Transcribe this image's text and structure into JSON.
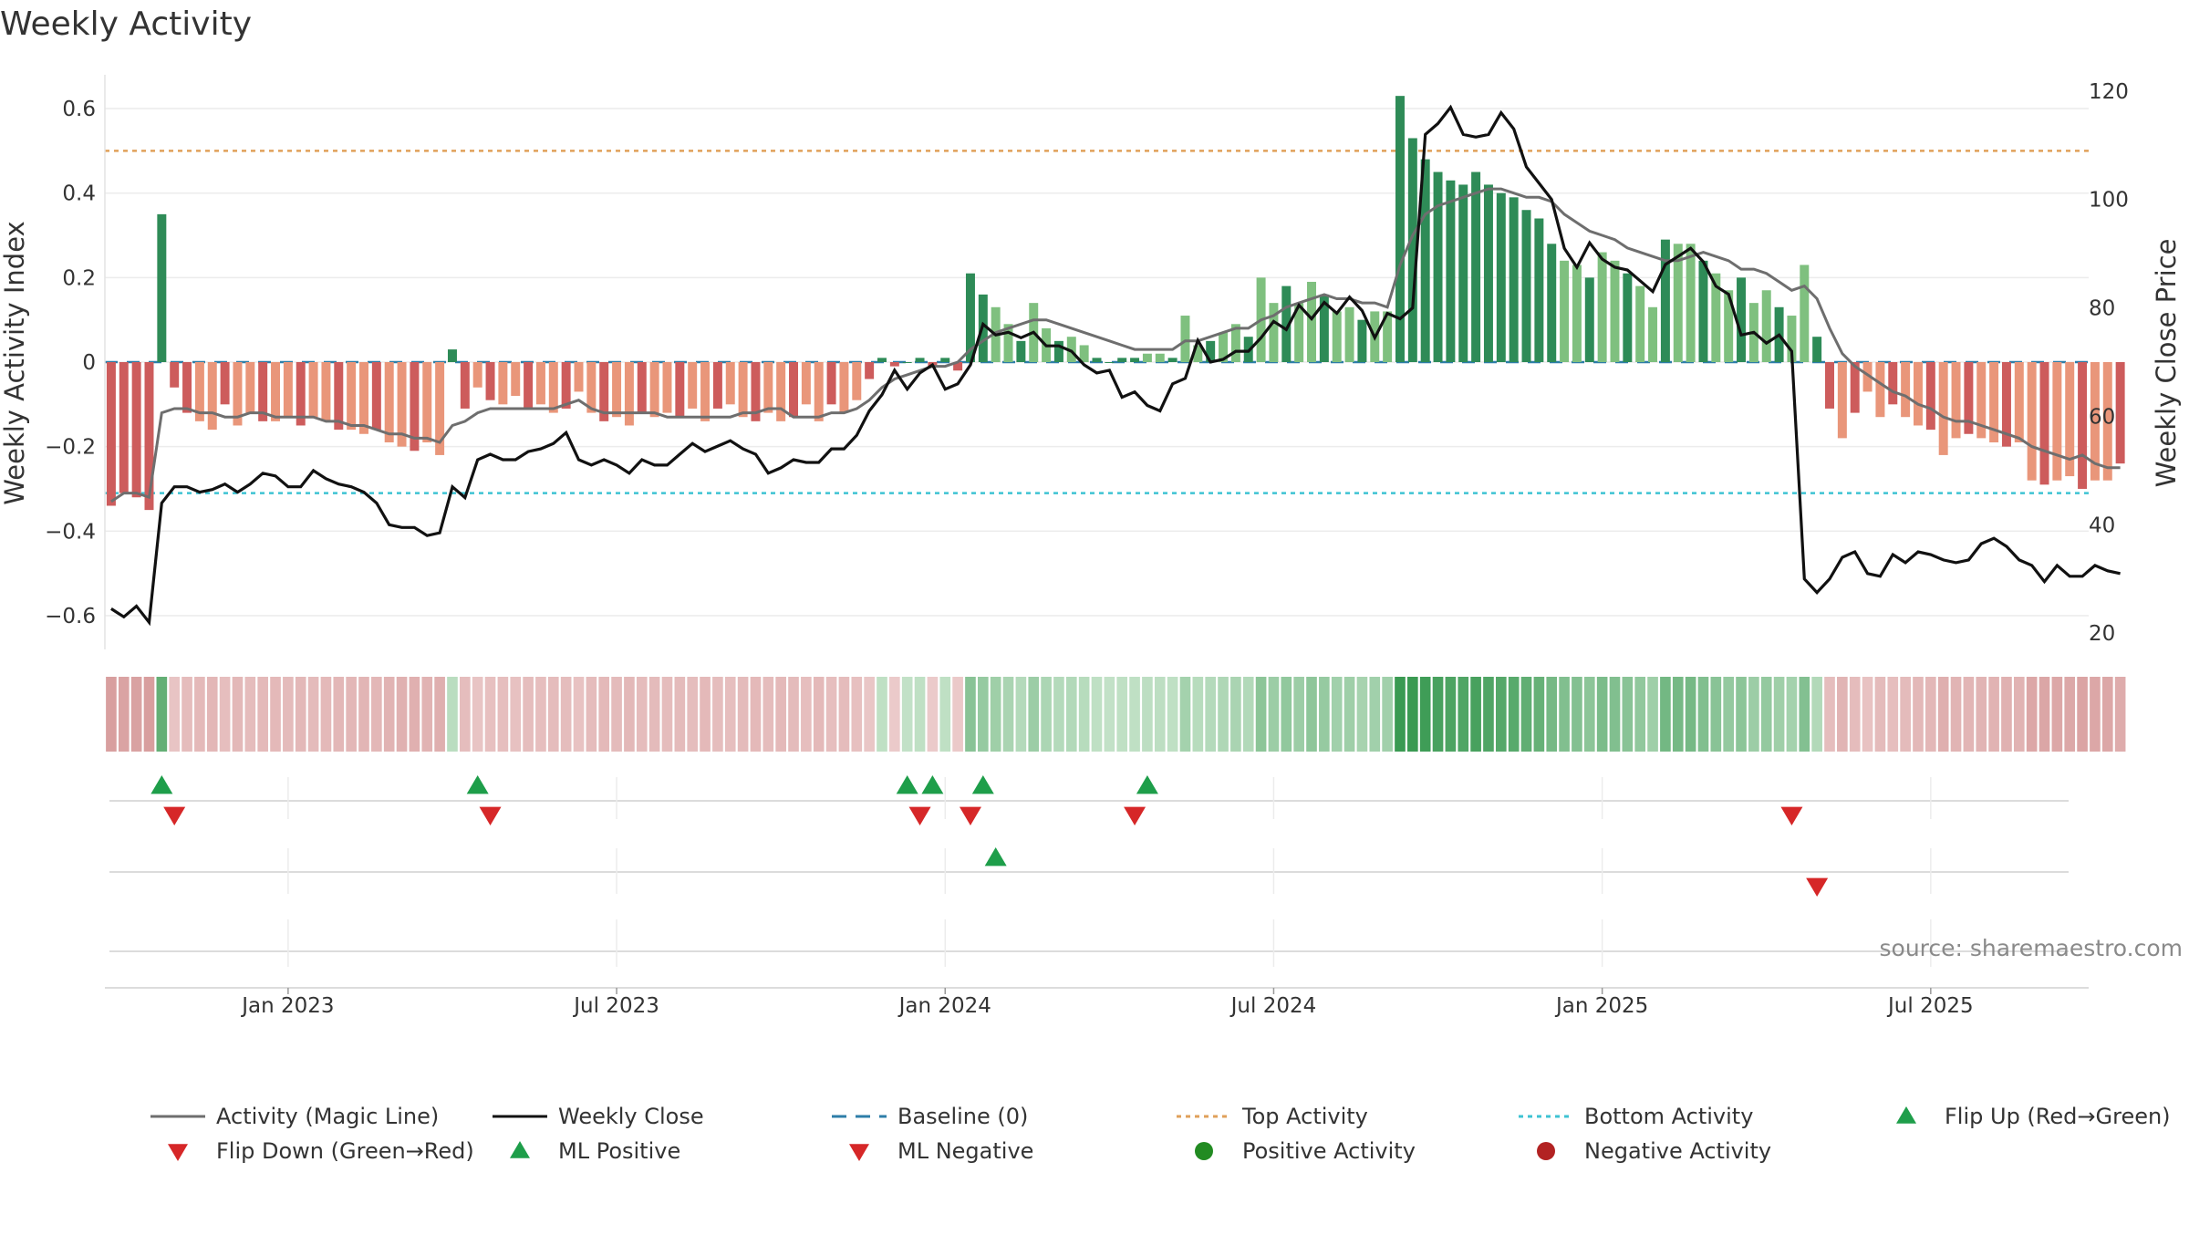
{
  "chart_data": {
    "type": "bar",
    "title": "Weekly Activity",
    "ylabel": "Weekly Activity Index",
    "ylabel_right": "Weekly Close Price",
    "ylim": [
      -0.68,
      0.68
    ],
    "ylim_right": [
      17,
      123
    ],
    "y_ticks": [
      {
        "value": 0.6,
        "label": "0.6"
      },
      {
        "value": 0.4,
        "label": "0.4"
      },
      {
        "value": 0.2,
        "label": "0.2"
      },
      {
        "value": 0,
        "label": "0"
      },
      {
        "value": -0.2,
        "label": "−0.2"
      },
      {
        "value": -0.4,
        "label": "−0.4"
      },
      {
        "value": -0.6,
        "label": "−0.6"
      }
    ],
    "y_right_ticks": [
      120,
      100,
      80,
      60,
      40,
      20
    ],
    "x_ticks": [
      {
        "week": 14,
        "label": "Jan 2023"
      },
      {
        "week": 40,
        "label": "Jul 2023"
      },
      {
        "week": 66,
        "label": "Jan 2024"
      },
      {
        "week": 92,
        "label": "Jul 2024"
      },
      {
        "week": 118,
        "label": "Jan 2025"
      },
      {
        "week": 144,
        "label": "Jul 2025"
      }
    ],
    "weeks": 157,
    "activity": [
      -0.34,
      -0.31,
      -0.32,
      -0.35,
      0.35,
      -0.06,
      -0.12,
      -0.14,
      -0.16,
      -0.1,
      -0.15,
      -0.12,
      -0.14,
      -0.14,
      -0.13,
      -0.15,
      -0.13,
      -0.14,
      -0.16,
      -0.16,
      -0.17,
      -0.16,
      -0.19,
      -0.2,
      -0.21,
      -0.19,
      -0.22,
      0.03,
      -0.11,
      -0.06,
      -0.09,
      -0.1,
      -0.08,
      -0.11,
      -0.1,
      -0.12,
      -0.11,
      -0.07,
      -0.12,
      -0.14,
      -0.13,
      -0.15,
      -0.12,
      -0.13,
      -0.12,
      -0.13,
      -0.11,
      -0.14,
      -0.11,
      -0.1,
      -0.13,
      -0.14,
      -0.12,
      -0.14,
      -0.13,
      -0.1,
      -0.14,
      -0.1,
      -0.12,
      -0.09,
      -0.04,
      0.01,
      -0.01,
      0.0,
      0.01,
      -0.01,
      0.01,
      -0.02,
      0.21,
      0.16,
      0.13,
      0.09,
      0.05,
      0.14,
      0.08,
      0.05,
      0.06,
      0.04,
      0.01,
      0.0,
      0.01,
      0.01,
      0.02,
      0.02,
      0.01,
      0.11,
      0.04,
      0.05,
      0.07,
      0.09,
      0.06,
      0.2,
      0.14,
      0.18,
      0.14,
      0.19,
      0.16,
      0.12,
      0.13,
      0.1,
      0.12,
      0.12,
      0.63,
      0.53,
      0.48,
      0.45,
      0.43,
      0.42,
      0.45,
      0.42,
      0.4,
      0.39,
      0.36,
      0.34,
      0.28,
      0.24,
      0.23,
      0.2,
      0.26,
      0.24,
      0.21,
      0.18,
      0.13,
      0.29,
      0.28,
      0.28,
      0.24,
      0.21,
      0.17,
      0.2,
      0.14,
      0.17,
      0.13,
      0.11,
      0.23,
      0.06,
      -0.11,
      -0.18,
      -0.12,
      -0.07,
      -0.13,
      -0.1,
      -0.13,
      -0.15,
      -0.16,
      -0.22,
      -0.18,
      -0.17,
      -0.18,
      -0.19,
      -0.2,
      -0.19,
      -0.28,
      -0.29,
      -0.28,
      -0.27,
      -0.3,
      -0.28,
      -0.28,
      -0.24
    ],
    "magic_line": [
      -0.33,
      -0.31,
      -0.31,
      -0.32,
      -0.12,
      -0.11,
      -0.11,
      -0.12,
      -0.12,
      -0.13,
      -0.13,
      -0.12,
      -0.12,
      -0.13,
      -0.13,
      -0.13,
      -0.13,
      -0.14,
      -0.14,
      -0.15,
      -0.15,
      -0.16,
      -0.17,
      -0.17,
      -0.18,
      -0.18,
      -0.19,
      -0.15,
      -0.14,
      -0.12,
      -0.11,
      -0.11,
      -0.11,
      -0.11,
      -0.11,
      -0.11,
      -0.1,
      -0.09,
      -0.11,
      -0.12,
      -0.12,
      -0.12,
      -0.12,
      -0.12,
      -0.13,
      -0.13,
      -0.13,
      -0.13,
      -0.13,
      -0.13,
      -0.12,
      -0.12,
      -0.11,
      -0.11,
      -0.13,
      -0.13,
      -0.13,
      -0.12,
      -0.12,
      -0.11,
      -0.09,
      -0.06,
      -0.04,
      -0.03,
      -0.02,
      -0.01,
      -0.01,
      0.0,
      0.03,
      0.05,
      0.07,
      0.08,
      0.09,
      0.1,
      0.1,
      0.09,
      0.08,
      0.07,
      0.06,
      0.05,
      0.04,
      0.03,
      0.03,
      0.03,
      0.03,
      0.05,
      0.05,
      0.06,
      0.07,
      0.08,
      0.08,
      0.1,
      0.11,
      0.13,
      0.14,
      0.15,
      0.16,
      0.15,
      0.15,
      0.14,
      0.14,
      0.13,
      0.23,
      0.3,
      0.35,
      0.37,
      0.38,
      0.39,
      0.4,
      0.41,
      0.41,
      0.4,
      0.39,
      0.39,
      0.38,
      0.35,
      0.33,
      0.31,
      0.3,
      0.29,
      0.27,
      0.26,
      0.25,
      0.24,
      0.24,
      0.25,
      0.26,
      0.25,
      0.24,
      0.22,
      0.22,
      0.21,
      0.19,
      0.17,
      0.18,
      0.15,
      0.08,
      0.02,
      -0.01,
      -0.03,
      -0.05,
      -0.07,
      -0.08,
      -0.1,
      -0.11,
      -0.13,
      -0.14,
      -0.14,
      -0.15,
      -0.16,
      -0.17,
      -0.18,
      -0.2,
      -0.21,
      -0.22,
      -0.23,
      -0.22,
      -0.24,
      -0.25,
      -0.25
    ],
    "weekly_close": [
      24.5,
      23.0,
      25.0,
      22.0,
      44.0,
      47.0,
      47.0,
      46.0,
      46.5,
      47.5,
      46.0,
      47.5,
      49.5,
      49.0,
      47.0,
      47.0,
      50.0,
      48.5,
      47.5,
      47.0,
      46.0,
      44.0,
      40.0,
      39.5,
      39.5,
      38.0,
      38.5,
      47.0,
      45.0,
      52.0,
      53.0,
      52.0,
      52.0,
      53.5,
      54.0,
      55.0,
      57.0,
      52.0,
      51.0,
      52.0,
      51.0,
      49.5,
      52.0,
      51.0,
      51.0,
      53.0,
      55.0,
      53.5,
      54.5,
      55.5,
      54.0,
      53.0,
      49.5,
      50.5,
      52.0,
      51.5,
      51.5,
      54.0,
      54.0,
      56.5,
      61.0,
      64.0,
      68.5,
      65.0,
      68.0,
      69.5,
      65.0,
      66.0,
      69.5,
      77.0,
      75.0,
      75.5,
      74.5,
      75.5,
      73.0,
      73.0,
      72.0,
      69.5,
      68.0,
      68.5,
      63.5,
      64.5,
      62.0,
      61.0,
      66.0,
      67.0,
      74.0,
      70.0,
      70.5,
      72.0,
      72.0,
      74.5,
      77.5,
      76.0,
      80.5,
      78.0,
      81.0,
      79.0,
      82.0,
      79.5,
      74.5,
      79.0,
      78.0,
      80.0,
      112.0,
      114.0,
      117.0,
      112.0,
      111.5,
      112.0,
      116.0,
      113.0,
      106.0,
      103.0,
      100.0,
      91.0,
      87.5,
      92.0,
      89.0,
      87.5,
      87.0,
      85.0,
      83.0,
      88.0,
      89.5,
      91.0,
      88.5,
      84.0,
      82.5,
      75.0,
      75.5,
      73.5,
      75.0,
      72.0,
      30.0,
      27.5,
      30.0,
      34.0,
      35.0,
      31.0,
      30.5,
      34.5,
      33.0,
      35.0,
      34.5,
      33.5,
      33.0,
      33.5,
      36.5,
      37.5,
      36.0,
      33.5,
      32.5,
      29.5,
      32.5,
      30.5,
      30.5,
      32.5,
      31.5,
      31.0
    ],
    "top_activity": 0.5,
    "bottom_activity": -0.31,
    "baseline": 0,
    "flip_up_weeks": [
      4,
      29,
      63,
      65,
      69,
      82
    ],
    "flip_down_weeks": [
      5,
      30,
      64,
      68,
      81,
      133
    ],
    "ml_positive_weeks": [
      70
    ],
    "ml_negative_weeks": [
      135
    ],
    "source": "source: sharemaestro.com",
    "legend": [
      {
        "label": "Activity (Magic Line)",
        "marker": "line-solid",
        "color": "#6e6e6e"
      },
      {
        "label": "Weekly Close",
        "marker": "line-solid",
        "color": "#111111"
      },
      {
        "label": "Baseline (0)",
        "marker": "line-dashed",
        "color": "#2e7ea8"
      },
      {
        "label": "Top Activity",
        "marker": "line-dotted",
        "color": "#e0a05a"
      },
      {
        "label": "Bottom Activity",
        "marker": "line-dotted",
        "color": "#3ec3d3"
      },
      {
        "label": "Flip Up (Red→Green)",
        "marker": "triangle-up",
        "color": "#1e9e4a"
      },
      {
        "label": "Flip Down (Green→Red)",
        "marker": "triangle-down",
        "color": "#d62728"
      },
      {
        "label": "ML Positive",
        "marker": "triangle-up",
        "color": "#1e9e4a"
      },
      {
        "label": "ML Negative",
        "marker": "triangle-down",
        "color": "#d62728"
      },
      {
        "label": "Positive Activity",
        "marker": "circle",
        "color": "#228b22"
      },
      {
        "label": "Negative Activity",
        "marker": "circle",
        "color": "#b22222"
      }
    ],
    "colors": {
      "strong_positive": "#2e8b57",
      "positive": "#7fc07f",
      "strong_negative": "#cd5c5c",
      "negative": "#e9967a",
      "magic_line": "#6e6e6e",
      "close": "#111111",
      "baseline": "#2e7ea8",
      "top_line": "#e0a05a",
      "bottom_line": "#3ec3d3",
      "up_marker": "#1e9e4a",
      "down_marker": "#d62728"
    }
  }
}
